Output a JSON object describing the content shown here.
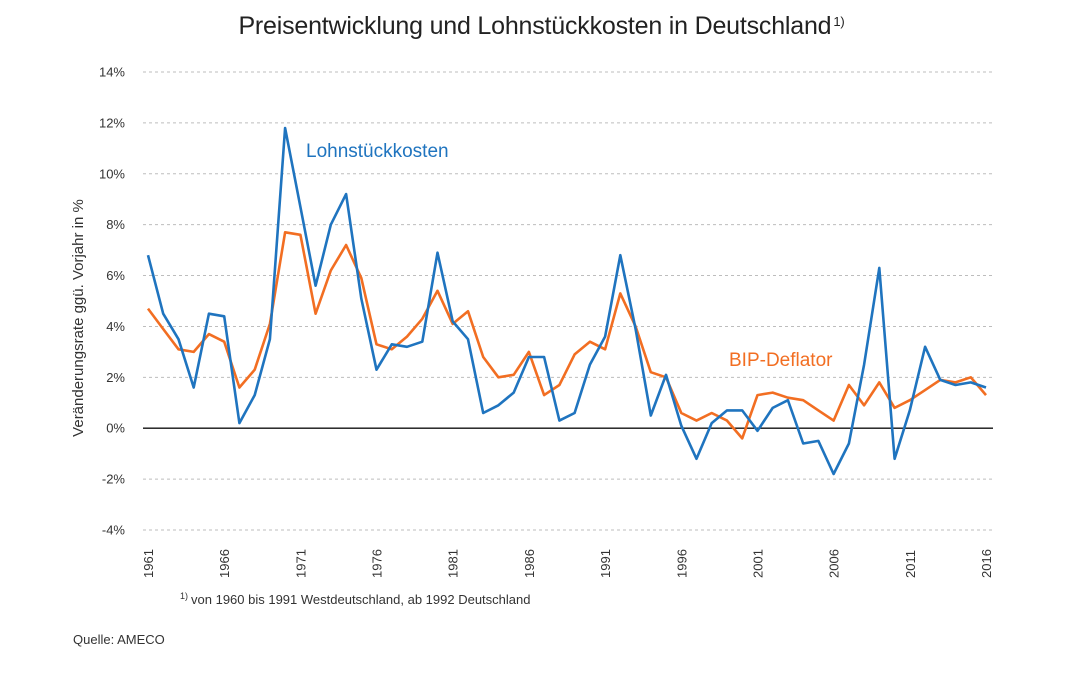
{
  "chart_data": {
    "type": "line",
    "title": "Preisentwicklung und Lohnstückkosten in Deutschland",
    "title_footnote_marker": "1)",
    "xlabel": "",
    "ylabel": "Veränderungsrate ggü. Vorjahr in %",
    "ylim": [
      -4,
      14
    ],
    "yticks": [
      -4,
      -2,
      0,
      2,
      4,
      6,
      8,
      10,
      12,
      14
    ],
    "ytick_labels": [
      "-4%",
      "-2%",
      "0%",
      "2%",
      "4%",
      "6%",
      "8%",
      "10%",
      "12%",
      "14%"
    ],
    "xlim": [
      1961,
      2016
    ],
    "xticks": [
      1961,
      1966,
      1971,
      1976,
      1981,
      1986,
      1991,
      1996,
      2001,
      2006,
      2011,
      2016
    ],
    "xtick_labels": [
      "1961",
      "1966",
      "1971",
      "1976",
      "1981",
      "1986",
      "1991",
      "1996",
      "2001",
      "2006",
      "2011",
      "2016"
    ],
    "x": [
      1961,
      1962,
      1963,
      1964,
      1965,
      1966,
      1967,
      1968,
      1969,
      1970,
      1971,
      1972,
      1973,
      1974,
      1975,
      1976,
      1977,
      1978,
      1979,
      1980,
      1981,
      1982,
      1983,
      1984,
      1985,
      1986,
      1987,
      1988,
      1989,
      1990,
      1991,
      1992,
      1993,
      1994,
      1995,
      1996,
      1997,
      1998,
      1999,
      2000,
      2001,
      2002,
      2003,
      2004,
      2005,
      2006,
      2007,
      2008,
      2009,
      2010,
      2011,
      2012,
      2013,
      2014,
      2015,
      2016
    ],
    "series": [
      {
        "name": "Lohnstückkosten",
        "color": "#1f74bf",
        "values": [
          6.8,
          4.5,
          3.5,
          1.6,
          4.5,
          4.4,
          0.2,
          1.3,
          3.5,
          11.8,
          8.7,
          5.6,
          8.0,
          9.2,
          5.1,
          2.3,
          3.3,
          3.2,
          3.4,
          6.9,
          4.2,
          3.5,
          0.6,
          0.9,
          1.4,
          2.8,
          2.8,
          0.3,
          0.6,
          2.5,
          3.6,
          6.8,
          3.9,
          0.5,
          2.1,
          0.1,
          -1.2,
          0.2,
          0.7,
          0.7,
          -0.1,
          0.8,
          1.1,
          -0.6,
          -0.5,
          -1.8,
          -0.6,
          2.5,
          6.3,
          -1.2,
          0.7,
          3.2,
          1.9,
          1.7,
          1.8,
          1.6
        ]
      },
      {
        "name": "BIP-Deflator",
        "color": "#f26e22",
        "values": [
          4.7,
          3.9,
          3.1,
          3.0,
          3.7,
          3.4,
          1.6,
          2.3,
          4.1,
          7.7,
          7.6,
          4.5,
          6.2,
          7.2,
          5.9,
          3.3,
          3.1,
          3.6,
          4.3,
          5.4,
          4.1,
          4.6,
          2.8,
          2.0,
          2.1,
          3.0,
          1.3,
          1.7,
          2.9,
          3.4,
          3.1,
          5.3,
          4.0,
          2.2,
          2.0,
          0.6,
          0.3,
          0.6,
          0.3,
          -0.4,
          1.3,
          1.4,
          1.2,
          1.1,
          0.7,
          0.3,
          1.7,
          0.9,
          1.8,
          0.8,
          1.1,
          1.5,
          1.9,
          1.8,
          2.0,
          1.3
        ]
      }
    ]
  },
  "footnote": {
    "marker": "1)",
    "text": "von 1960 bis 1991 Westdeutschland, ab 1992 Deutschland"
  },
  "source": "Quelle: AMECO"
}
